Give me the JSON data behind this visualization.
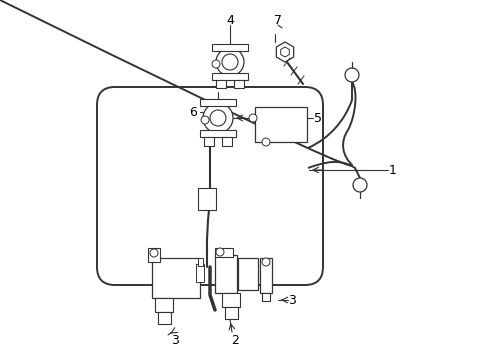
{
  "background_color": "#ffffff",
  "line_color": "#333333",
  "label_color": "#000000",
  "figure_width": 4.9,
  "figure_height": 3.6,
  "dpi": 100
}
